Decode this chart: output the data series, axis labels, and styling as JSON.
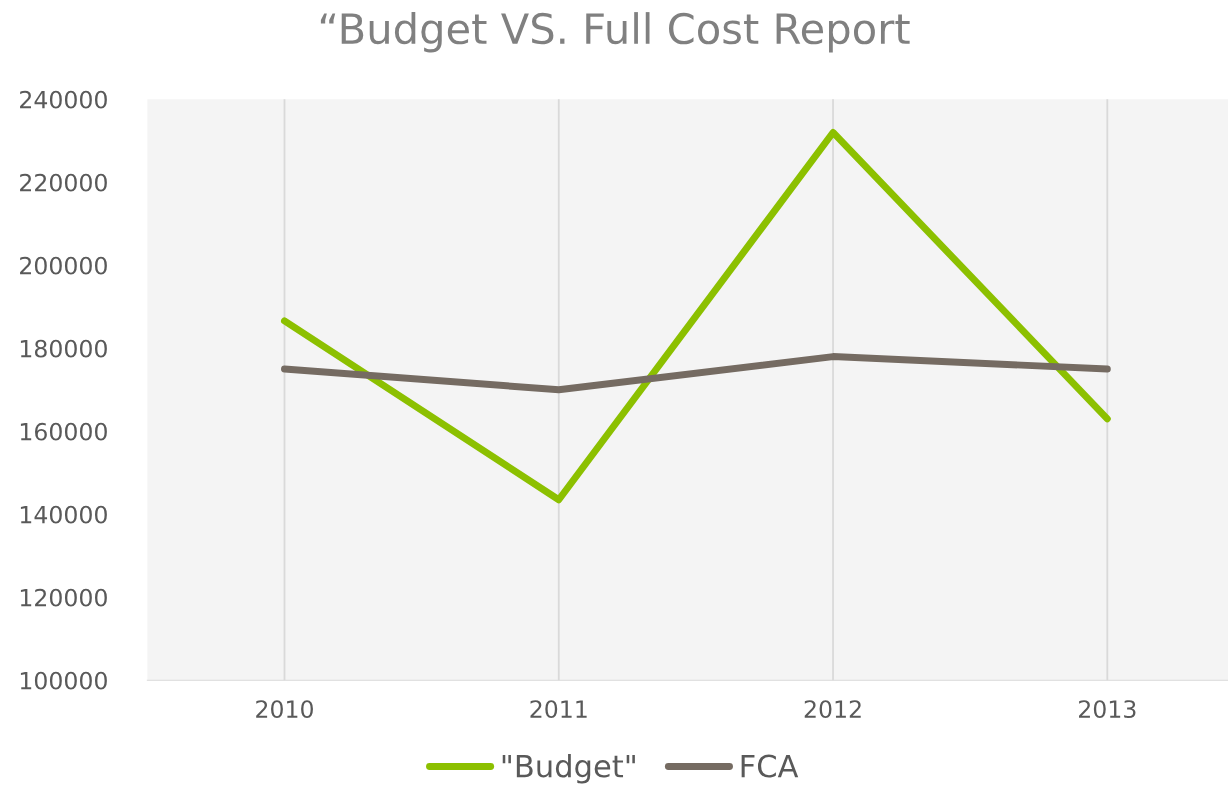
{
  "chart_data": {
    "type": "line",
    "title": "“Budget VS. Full Cost Report",
    "categories": [
      "2010",
      "2011",
      "2012",
      "2013"
    ],
    "series": [
      {
        "name": "\"Budget\"",
        "color": "#8cc000",
        "values": [
          186600,
          143500,
          232000,
          163000
        ]
      },
      {
        "name": "FCA",
        "color": "#756b62",
        "values": [
          175000,
          170000,
          178000,
          175000
        ]
      }
    ],
    "ylim": [
      100000,
      240000
    ],
    "yticks": [
      100000,
      120000,
      140000,
      160000,
      180000,
      200000,
      220000,
      240000
    ],
    "grid": "x",
    "legend": "bottom",
    "marker": "none",
    "line_style": "solid"
  }
}
